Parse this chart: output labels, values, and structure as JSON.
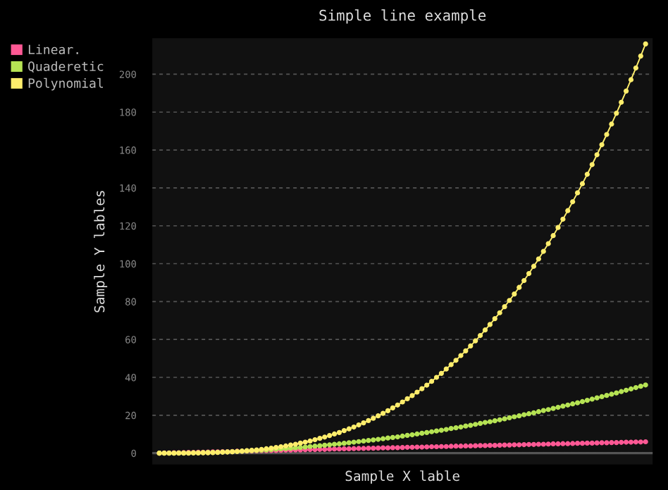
{
  "chart_data": {
    "type": "line",
    "title": "Simple line example",
    "xlabel": "Sample X lable",
    "ylabel": "Sample Y lables",
    "categories": [
      null,
      null,
      null,
      null,
      null,
      null,
      null,
      null,
      null,
      null,
      null,
      null,
      null,
      null,
      null,
      null,
      null,
      null,
      null,
      null,
      null,
      null,
      null,
      null,
      null,
      null,
      null,
      null,
      null,
      null,
      null,
      null,
      null,
      null,
      null,
      null,
      null,
      null,
      null,
      null,
      null,
      null,
      null,
      null,
      null,
      null,
      null,
      null,
      null,
      null,
      null,
      null,
      null,
      null,
      null,
      null,
      null,
      null,
      null,
      null,
      null,
      null,
      null,
      null,
      null,
      null,
      null,
      null,
      null,
      null,
      null,
      null,
      null,
      null,
      null,
      null,
      null,
      null,
      null,
      null,
      null,
      null,
      null,
      null,
      null,
      null,
      null,
      null,
      null,
      null,
      null,
      null,
      null,
      null,
      null,
      null,
      null,
      null,
      null,
      null,
      null
    ],
    "series": [
      {
        "name": "Linear.",
        "color": "#ff5995",
        "values": [
          0,
          0.1,
          0.1,
          0.2,
          0.2,
          0.3,
          0.4,
          0.4,
          0.5,
          0.5,
          0.6,
          0.7,
          0.7,
          0.8,
          0.8,
          0.9,
          1.0,
          1.0,
          1.1,
          1.1,
          1.2,
          1.3,
          1.3,
          1.4,
          1.4,
          1.5,
          1.6,
          1.6,
          1.7,
          1.7,
          1.8,
          1.9,
          1.9,
          2.0,
          2.0,
          2.1,
          2.2,
          2.2,
          2.3,
          2.3,
          2.4,
          2.5,
          2.5,
          2.6,
          2.6,
          2.7,
          2.8,
          2.8,
          2.9,
          2.9,
          3.0,
          3.1,
          3.1,
          3.2,
          3.2,
          3.3,
          3.4,
          3.4,
          3.5,
          3.5,
          3.6,
          3.7,
          3.7,
          3.8,
          3.8,
          3.9,
          4.0,
          4.0,
          4.1,
          4.1,
          4.2,
          4.3,
          4.3,
          4.4,
          4.4,
          4.5,
          4.6,
          4.6,
          4.7,
          4.7,
          4.8,
          4.9,
          4.9,
          5.0,
          5.0,
          5.1,
          5.2,
          5.2,
          5.3,
          5.3,
          5.4,
          5.5,
          5.5,
          5.6,
          5.6,
          5.7,
          5.8,
          5.8,
          5.9,
          5.9,
          6.0
        ]
      },
      {
        "name": "Quaderetic",
        "color": "#b6e354",
        "values": [
          0,
          0.0,
          0.0,
          0.0,
          0.1,
          0.1,
          0.1,
          0.2,
          0.2,
          0.3,
          0.4,
          0.4,
          0.5,
          0.6,
          0.7,
          0.8,
          0.9,
          1.0,
          1.2,
          1.3,
          1.4,
          1.6,
          1.7,
          1.9,
          2.1,
          2.3,
          2.4,
          2.6,
          2.8,
          3.0,
          3.2,
          3.5,
          3.7,
          3.9,
          4.2,
          4.4,
          4.7,
          4.9,
          5.2,
          5.5,
          5.8,
          6.1,
          6.4,
          6.7,
          7.0,
          7.3,
          7.6,
          8.0,
          8.3,
          8.6,
          9.0,
          9.4,
          9.7,
          10.1,
          10.5,
          10.9,
          11.3,
          11.7,
          12.1,
          12.5,
          13.0,
          13.4,
          13.8,
          14.3,
          14.7,
          15.2,
          15.7,
          16.2,
          16.6,
          17.1,
          17.6,
          18.1,
          18.7,
          19.2,
          19.7,
          20.3,
          20.8,
          21.3,
          21.9,
          22.5,
          23.0,
          23.6,
          24.2,
          24.8,
          25.4,
          26.0,
          26.6,
          27.2,
          27.9,
          28.5,
          29.2,
          29.8,
          30.5,
          31.1,
          31.8,
          32.5,
          33.2,
          33.9,
          34.6,
          35.3,
          36.0
        ]
      },
      {
        "name": "Polynomial",
        "color": "#feed6c",
        "values": [
          0,
          0.0,
          0.0,
          0.0,
          0.0,
          0.0,
          0.0,
          0.1,
          0.1,
          0.2,
          0.2,
          0.3,
          0.4,
          0.5,
          0.6,
          0.7,
          0.9,
          1.1,
          1.3,
          1.5,
          1.7,
          2.0,
          2.3,
          2.6,
          3.0,
          3.4,
          3.8,
          4.3,
          4.7,
          5.3,
          5.8,
          6.4,
          7.1,
          7.8,
          8.5,
          9.3,
          10.1,
          10.9,
          11.9,
          12.8,
          13.8,
          14.9,
          16.0,
          17.2,
          18.4,
          19.7,
          21.0,
          22.4,
          23.9,
          25.4,
          27.0,
          28.7,
          30.4,
          32.2,
          34.0,
          35.9,
          37.9,
          40.0,
          42.1,
          44.4,
          46.7,
          49.0,
          51.5,
          54.0,
          56.6,
          59.3,
          62.1,
          65.0,
          67.9,
          71.0,
          74.1,
          77.3,
          80.6,
          84.0,
          87.5,
          91.1,
          94.8,
          98.6,
          102.5,
          106.5,
          110.6,
          114.8,
          119.1,
          123.5,
          128.0,
          132.7,
          137.4,
          142.2,
          147.2,
          152.3,
          157.5,
          162.8,
          168.2,
          173.7,
          179.4,
          185.2,
          191.1,
          197.1,
          203.3,
          209.6,
          216.0
        ]
      }
    ],
    "ylim": [
      -6,
      219
    ],
    "yticks": [
      0,
      20,
      40,
      60,
      80,
      100,
      120,
      140,
      160,
      180,
      200
    ],
    "grid": "y",
    "legend": "top left",
    "marker": "circle",
    "line_style": "solid",
    "tick_labels": "y"
  }
}
